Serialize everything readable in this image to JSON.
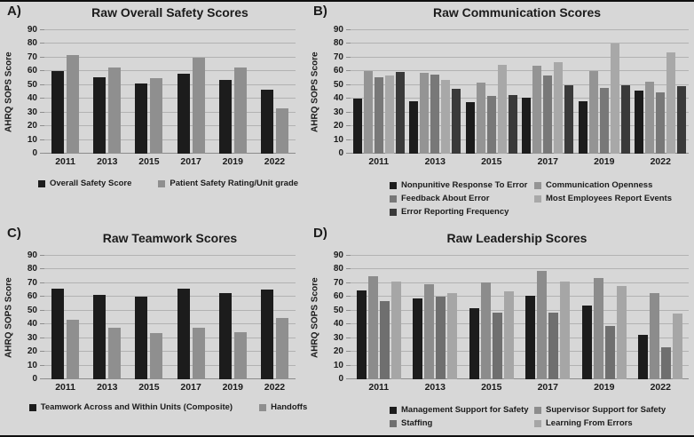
{
  "figure": {
    "background_color": "#d7d7d7",
    "border_color": "#0f0f0f",
    "gridline_color": "#b2b2b2",
    "text_color": "#1b1b1b"
  },
  "chart_data": [
    {
      "type": "bar",
      "panel_label": "A)",
      "title": "Raw Overall Safety Scores",
      "ylabel": "AHRQ SOPS Score",
      "categories": [
        "2011",
        "2013",
        "2015",
        "2017",
        "2019",
        "2022"
      ],
      "series": [
        {
          "name": "Overall Safety Score",
          "color": "#1c1c1c",
          "values": [
            60,
            55.5,
            51,
            58,
            53.5,
            46.5
          ]
        },
        {
          "name": "Patient Safety Rating/Unit grade",
          "color": "#8f8f8f",
          "values": [
            72,
            63,
            55,
            70,
            62.5,
            33
          ]
        }
      ],
      "ylim": [
        0,
        90
      ],
      "ytick_step": 10,
      "grid": true,
      "legend_position": "bottom"
    },
    {
      "type": "bar",
      "panel_label": "B)",
      "title": "Raw Communication Scores",
      "ylabel": "AHRQ SOPS Score",
      "categories": [
        "2011",
        "2013",
        "2015",
        "2017",
        "2019",
        "2022"
      ],
      "series": [
        {
          "name": "Nonpunitive Response To Error",
          "color": "#1c1c1c",
          "values": [
            40,
            38,
            37.5,
            41,
            38,
            46
          ]
        },
        {
          "name": "Communication Openness",
          "color": "#949494",
          "values": [
            60,
            59,
            51.5,
            64,
            60,
            52.5
          ]
        },
        {
          "name": "Feedback About Error",
          "color": "#787878",
          "values": [
            56,
            57.5,
            42,
            57,
            48,
            44.5
          ]
        },
        {
          "name": "Most Employees Report Events",
          "color": "#a8a8a8",
          "values": [
            57,
            54,
            65,
            66.5,
            80,
            74
          ]
        },
        {
          "name": "Error Reporting Frequency",
          "color": "#3a3a3a",
          "values": [
            59.5,
            47.5,
            43,
            50,
            50,
            49
          ]
        }
      ],
      "ylim": [
        0,
        90
      ],
      "ytick_step": 10,
      "grid": true,
      "legend_position": "bottom"
    },
    {
      "type": "bar",
      "panel_label": "C)",
      "title": "Raw Teamwork Scores",
      "ylabel": "AHRQ SOPS Score",
      "categories": [
        "2011",
        "2013",
        "2015",
        "2017",
        "2019",
        "2022"
      ],
      "series": [
        {
          "name": "Teamwork Across and Within Units (Composite)",
          "color": "#1c1c1c",
          "values": [
            66,
            61.5,
            60,
            66,
            63,
            65.5
          ]
        },
        {
          "name": "Handoffs",
          "color": "#8f8f8f",
          "values": [
            43.5,
            37.5,
            34,
            37.5,
            34.5,
            45
          ]
        }
      ],
      "ylim": [
        0,
        90
      ],
      "ytick_step": 10,
      "grid": true,
      "legend_position": "bottom"
    },
    {
      "type": "bar",
      "panel_label": "D)",
      "title": "Raw Leadership Scores",
      "ylabel": "AHRQ SOPS Score",
      "categories": [
        "2011",
        "2013",
        "2015",
        "2017",
        "2019",
        "2022"
      ],
      "series": [
        {
          "name": "Management Support for Safety",
          "color": "#1c1c1c",
          "values": [
            65,
            59,
            52,
            61,
            53.5,
            32.5
          ]
        },
        {
          "name": "Supervisor Support for Safety",
          "color": "#8c8c8c",
          "values": [
            75,
            69,
            70.5,
            79,
            73.5,
            63
          ]
        },
        {
          "name": "Staffing",
          "color": "#6f6f6f",
          "values": [
            57,
            60,
            48.5,
            48.5,
            39,
            23.5
          ]
        },
        {
          "name": "Learning From Errors",
          "color": "#a6a6a6",
          "values": [
            71.5,
            63,
            64,
            71.5,
            68,
            48
          ]
        }
      ],
      "ylim": [
        0,
        90
      ],
      "ytick_step": 10,
      "grid": true,
      "legend_position": "bottom"
    }
  ]
}
